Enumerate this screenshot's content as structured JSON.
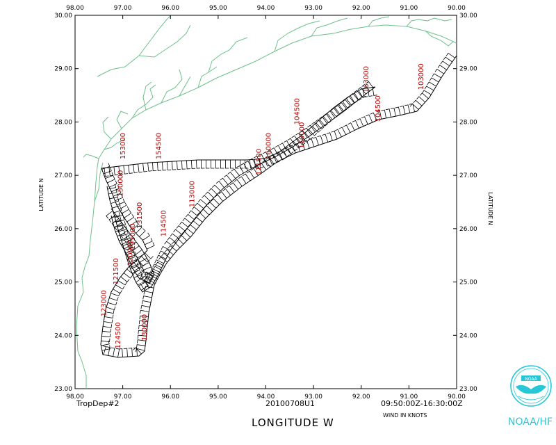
{
  "map": {
    "lon_range": [
      90.0,
      98.0
    ],
    "lat_range": [
      23.0,
      30.0
    ],
    "lon_ticks": [
      "98.00",
      "97.00",
      "96.00",
      "95.00",
      "94.00",
      "93.00",
      "92.00",
      "91.00",
      "90.00"
    ],
    "lat_ticks": [
      "23.00",
      "24.00",
      "25.00",
      "26.00",
      "27.00",
      "28.00",
      "29.00",
      "30.00"
    ],
    "left_axis_title": "LATITUDE N",
    "right_axis_title": "LATITUDE N",
    "bottom_axis_title": "LONGITUDE W",
    "coast_color": "#6cc08a",
    "track_color": "#000000",
    "label_color": "#b00000"
  },
  "time_labels": [
    {
      "text": "163000",
      "lon": 91.85,
      "lat": 28.55
    },
    {
      "text": "103000",
      "lon": 90.7,
      "lat": 28.6
    },
    {
      "text": "104500",
      "lon": 91.6,
      "lat": 28.0
    },
    {
      "text": "104500",
      "lon": 93.3,
      "lat": 27.95
    },
    {
      "text": "110000",
      "lon": 93.2,
      "lat": 27.5
    },
    {
      "text": "160000",
      "lon": 93.9,
      "lat": 27.3
    },
    {
      "text": "111500",
      "lon": 94.1,
      "lat": 27.0
    },
    {
      "text": "154500",
      "lon": 96.2,
      "lat": 27.3
    },
    {
      "text": "153000",
      "lon": 96.95,
      "lat": 27.3
    },
    {
      "text": "113000",
      "lon": 95.5,
      "lat": 26.4
    },
    {
      "text": "114500",
      "lon": 96.1,
      "lat": 25.85
    },
    {
      "text": "120000",
      "lon": 96.8,
      "lat": 25.3
    },
    {
      "text": "121500",
      "lon": 97.1,
      "lat": 24.95
    },
    {
      "text": "123000",
      "lon": 97.35,
      "lat": 24.35
    },
    {
      "text": "124500",
      "lon": 97.05,
      "lat": 23.75
    },
    {
      "text": "130000",
      "lon": 96.5,
      "lat": 23.9
    },
    {
      "text": "131500",
      "lon": 96.6,
      "lat": 26.0
    },
    {
      "text": "133000",
      "lon": 96.75,
      "lat": 25.6
    },
    {
      "text": "150000",
      "lon": 97.0,
      "lat": 26.6
    }
  ],
  "footer": {
    "left": "TropDep#2",
    "center": "20100708U1",
    "right": "09:50:00Z-16:30:00Z",
    "units": "WIND IN KNOTS"
  },
  "logo": {
    "text": "NOAA/HF",
    "badge": "NOAA",
    "color": "#27c7d8"
  }
}
